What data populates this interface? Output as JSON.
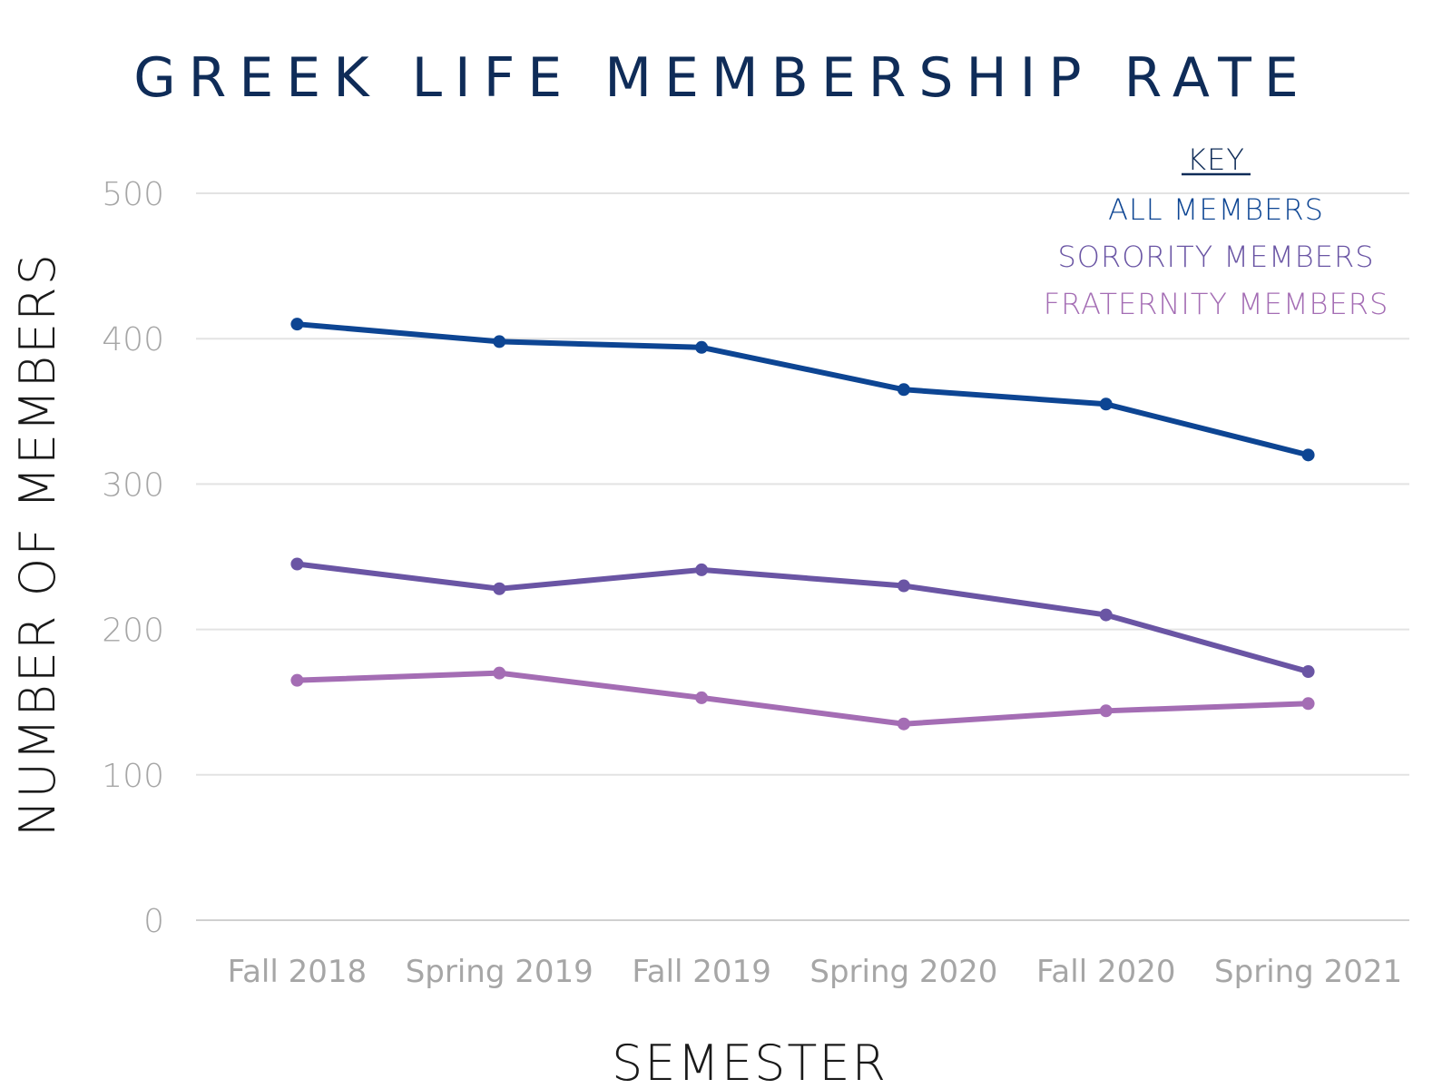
{
  "chart_data": {
    "type": "line",
    "title": "GREEK LIFE MEMBERSHIP RATE",
    "xlabel": "SEMESTER",
    "ylabel": "NUMBER OF MEMBERS",
    "categories": [
      "Fall 2018",
      "Spring 2019",
      "Fall 2019",
      "Spring 2020",
      "Fall 2020",
      "Spring 2021"
    ],
    "ylim": [
      0,
      500
    ],
    "yticks": [
      0,
      100,
      200,
      300,
      400,
      500
    ],
    "grid": true,
    "legend": {
      "title": "KEY",
      "placement": "top-right"
    },
    "series": [
      {
        "name": "ALL MEMBERS",
        "color": "#0d4593",
        "values": [
          410,
          398,
          394,
          365,
          355,
          320
        ]
      },
      {
        "name": "SORORITY MEMBERS",
        "color": "#6a55a4",
        "values": [
          245,
          228,
          241,
          230,
          210,
          171
        ]
      },
      {
        "name": "FRATERNITY MEMBERS",
        "color": "#a46db4",
        "values": [
          165,
          170,
          153,
          135,
          144,
          149
        ]
      }
    ]
  },
  "colors": {
    "title": "#0f2c58",
    "tick_label": "#a6a6a6",
    "gridline": "#e3e3e3",
    "axis_title": "#1a1a1a",
    "legend_title": "#0f2c58"
  }
}
